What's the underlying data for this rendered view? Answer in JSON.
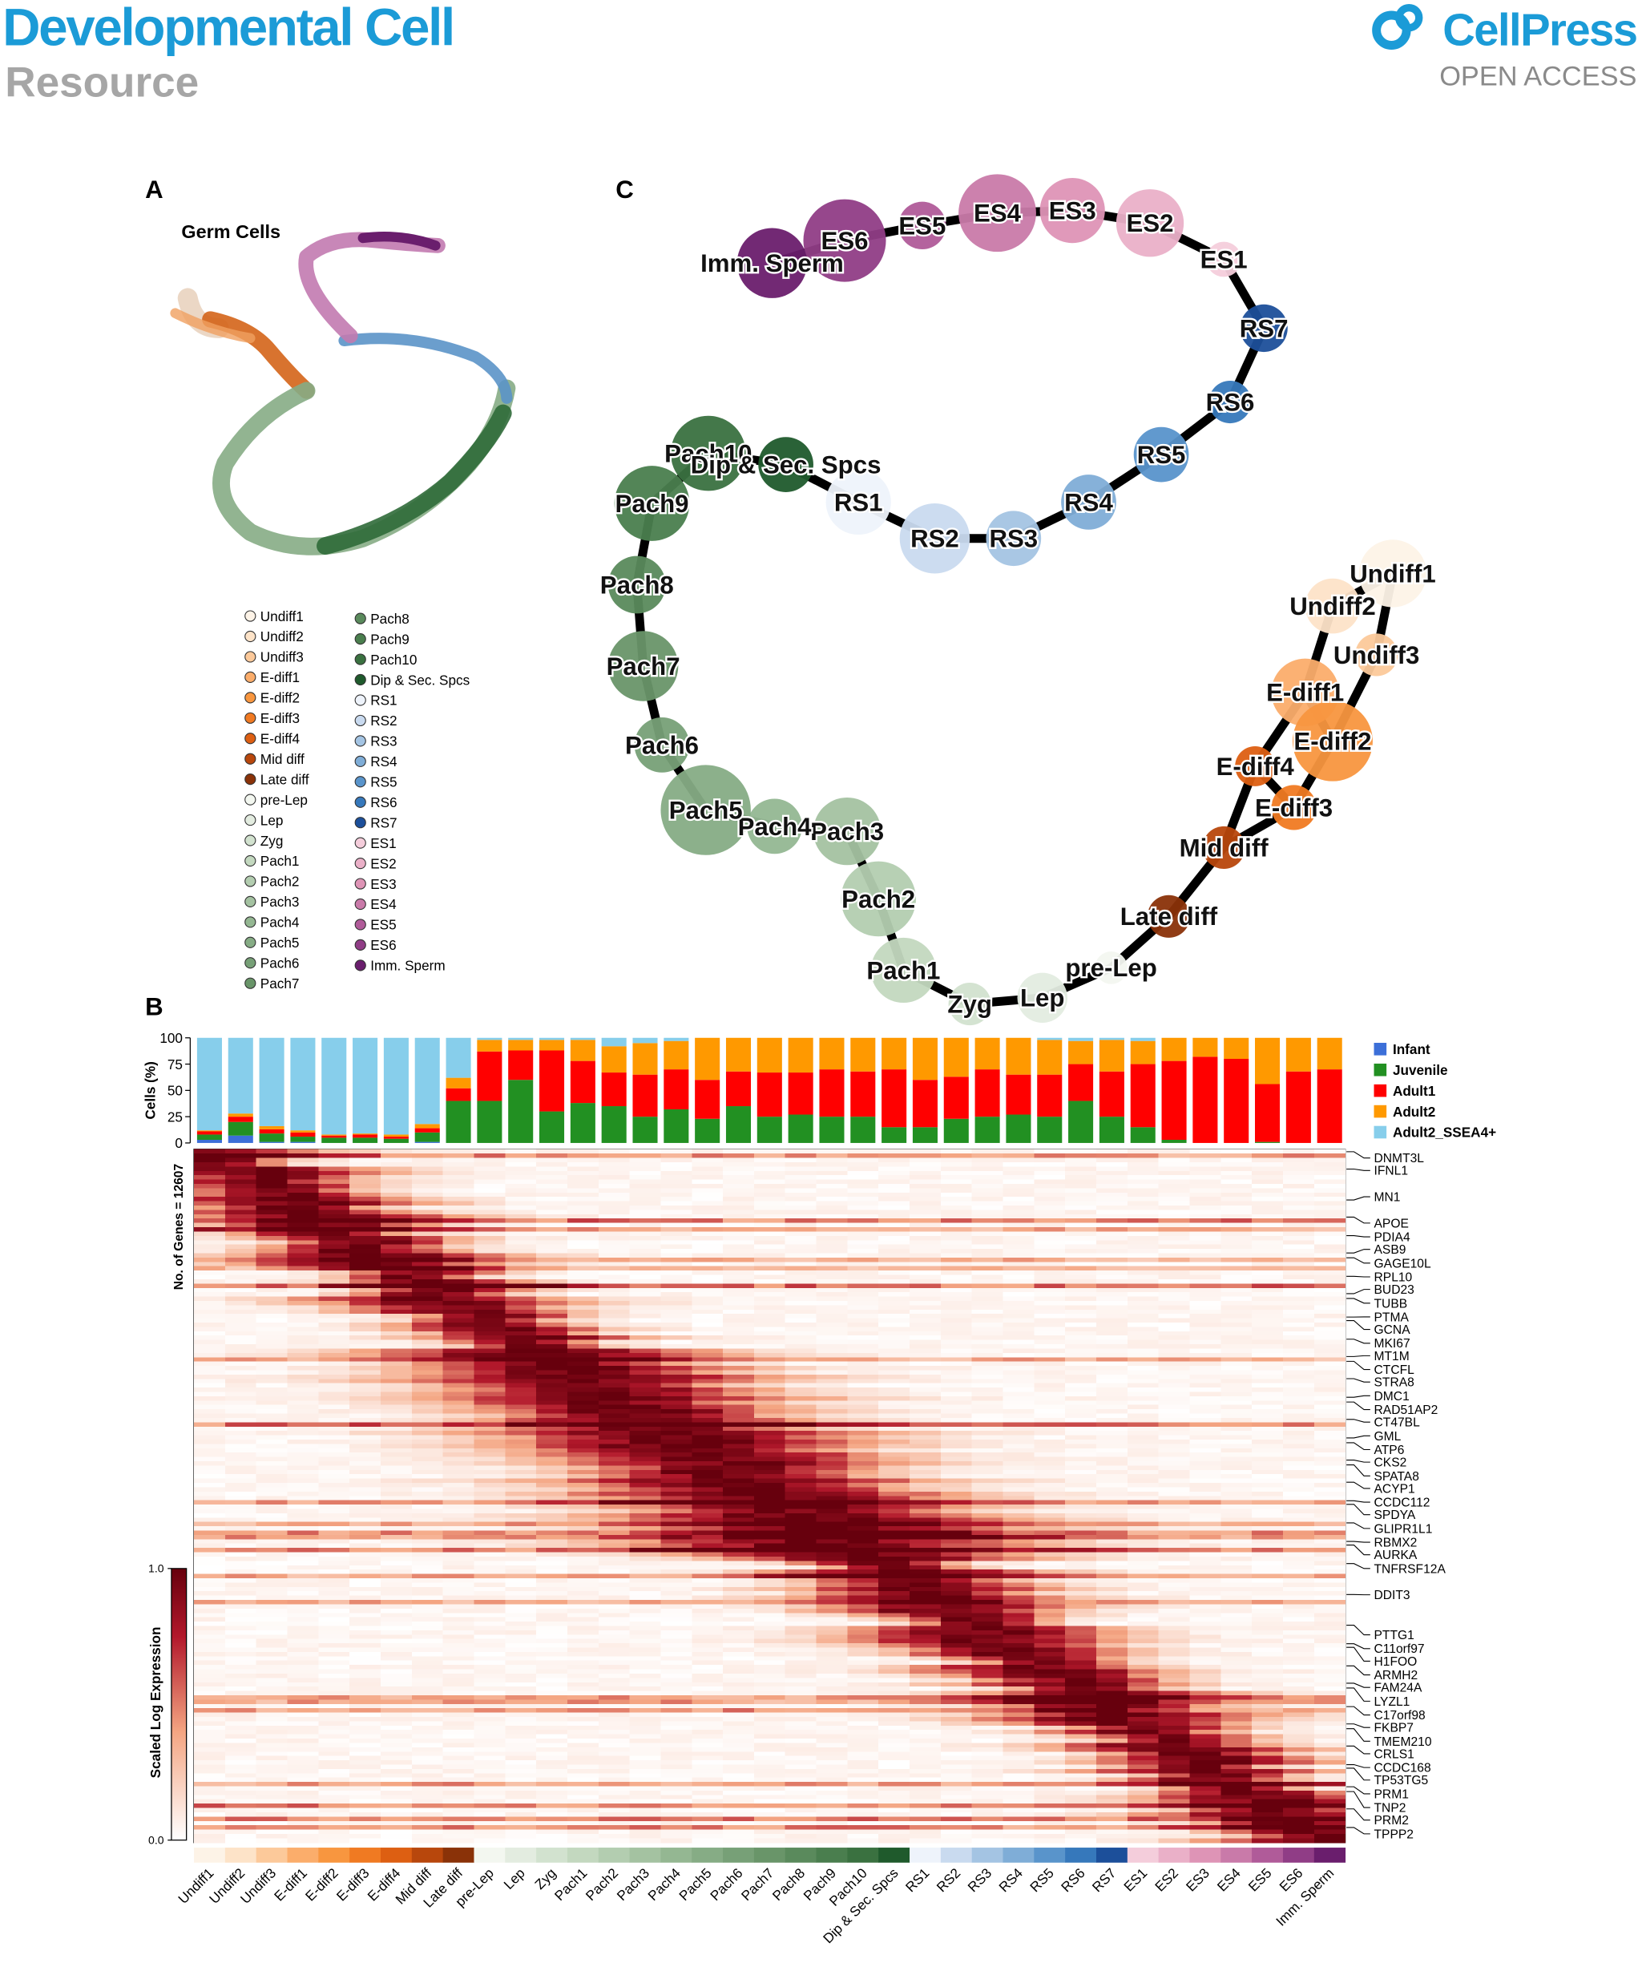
{
  "header": {
    "journal": "Developmental Cell",
    "section": "Resource",
    "publisher": "CellPress",
    "access": "OPEN ACCESS"
  },
  "panel_a": {
    "label": "A",
    "title": "Germ Cells"
  },
  "panel_c": {
    "label": "C"
  },
  "stage_colors": [
    "#fdf3e7",
    "#fde3c8",
    "#fcc99a",
    "#fbad6b",
    "#f8963f",
    "#f07a22",
    "#dd5f12",
    "#b8470c",
    "#8a3208",
    "#f3f7f0",
    "#e3ece0",
    "#d2e2cf",
    "#c3d8bf",
    "#b3cdb0",
    "#a4c2a1",
    "#94b792",
    "#86ac85",
    "#77a077",
    "#699569",
    "#5a8a5c",
    "#4a7e4e",
    "#3a7140",
    "#1f5a2c",
    "#eef3fb",
    "#c9daef",
    "#a4c4e3",
    "#7fadd7",
    "#5994cb",
    "#3678bb",
    "#1c4f9a",
    "#f4cddb",
    "#eab0c8",
    "#de94b6",
    "#c97aa9",
    "#b05b99",
    "#903d86",
    "#6a1e6d"
  ],
  "panel_b": {
    "label": "B",
    "chart_data": {
      "type": "bar",
      "stacked": true,
      "y_label": "Cells (%)",
      "categories": [
        "Undiff1",
        "Undiff2",
        "Undiff3",
        "E-diff1",
        "E-diff2",
        "E-diff3",
        "E-diff4",
        "Mid diff",
        "Late diff",
        "pre-Lep",
        "Lep",
        "Zyg",
        "Pach1",
        "Pach2",
        "Pach3",
        "Pach4",
        "Pach5",
        "Pach6",
        "Pach7",
        "Pach8",
        "Pach9",
        "Pach10",
        "Dip & Sec. Spcs",
        "RS1",
        "RS2",
        "RS3",
        "RS4",
        "RS5",
        "RS6",
        "RS7",
        "ES1",
        "ES2",
        "ES3",
        "ES4",
        "ES5",
        "ES6",
        "Imm. Sperm"
      ],
      "ylim": [
        0,
        100
      ],
      "yticks": [
        0,
        25,
        50,
        75,
        100
      ],
      "series": [
        {
          "name": "Infant",
          "color": "#3c6fd8",
          "values": [
            3,
            7,
            1,
            1,
            0,
            0,
            0,
            1,
            0,
            0,
            0,
            0,
            0,
            0,
            0,
            0,
            0,
            0,
            0,
            0,
            0,
            0,
            0,
            0,
            0,
            0,
            0,
            0,
            0,
            0,
            0,
            0,
            0,
            0,
            0,
            0,
            0
          ]
        },
        {
          "name": "Juvenile",
          "color": "#229022",
          "values": [
            5,
            13,
            8,
            5,
            5,
            5,
            4,
            9,
            40,
            40,
            60,
            30,
            38,
            35,
            25,
            32,
            23,
            35,
            25,
            27,
            25,
            25,
            15,
            15,
            23,
            25,
            27,
            25,
            40,
            25,
            15,
            3,
            0,
            0,
            1,
            0,
            0
          ]
        },
        {
          "name": "Adult1",
          "color": "#ff0000",
          "values": [
            3,
            5,
            4,
            4,
            2,
            3,
            2,
            4,
            12,
            47,
            28,
            58,
            40,
            32,
            40,
            38,
            37,
            33,
            42,
            40,
            45,
            43,
            55,
            45,
            40,
            45,
            38,
            40,
            35,
            43,
            60,
            75,
            82,
            80,
            55,
            68,
            70
          ]
        },
        {
          "name": "Adult2",
          "color": "#ff9900",
          "values": [
            1,
            3,
            3,
            2,
            1,
            1,
            2,
            4,
            10,
            11,
            10,
            10,
            20,
            25,
            30,
            27,
            40,
            32,
            33,
            33,
            30,
            32,
            30,
            40,
            37,
            30,
            35,
            33,
            22,
            30,
            22,
            22,
            18,
            20,
            44,
            32,
            30
          ]
        },
        {
          "name": "Adult2_SSEA4+",
          "color": "#87ceeb",
          "values": [
            88,
            72,
            84,
            88,
            92,
            91,
            92,
            82,
            38,
            2,
            2,
            2,
            2,
            8,
            5,
            3,
            0,
            0,
            0,
            0,
            0,
            0,
            0,
            0,
            0,
            0,
            0,
            2,
            3,
            2,
            3,
            0,
            0,
            0,
            0,
            0,
            0
          ]
        }
      ]
    },
    "heatmap": {
      "gene_count_label": "No. of Genes = 12607",
      "colorbar_label": "Scaled Log Expression",
      "colorbar_ticks": [
        {
          "value": 0,
          "label": "0.0"
        },
        {
          "value": 1,
          "label": "1.0"
        }
      ],
      "genes": [
        "DNMT3L",
        "IFNL1",
        "MN1",
        "APOE",
        "PDIA4",
        "ASB9",
        "GAGE10L",
        "RPL10",
        "BUD23",
        "TUBB",
        "PTMA",
        "GCNA",
        "MKI67",
        "MT1M",
        "CTCFL",
        "STRA8",
        "DMC1",
        "RAD51AP2",
        "CT47BL",
        "GML",
        "ATP6",
        "CKS2",
        "SPATA8",
        "ACYP1",
        "CCDC112",
        "SPDYA",
        "GLIPR1L1",
        "RBMX2",
        "AURKA",
        "TNFRSF12A",
        "DDIT3",
        "PTTG1",
        "C11orf97",
        "H1FOO",
        "ARMH2",
        "FAM24A",
        "LYZL1",
        "C17orf98",
        "FKBP7",
        "TMEM210",
        "CRLS1",
        "CCDC168",
        "TP53TG5",
        "PRM1",
        "TNP2",
        "PRM2",
        "TPPP2"
      ]
    }
  }
}
